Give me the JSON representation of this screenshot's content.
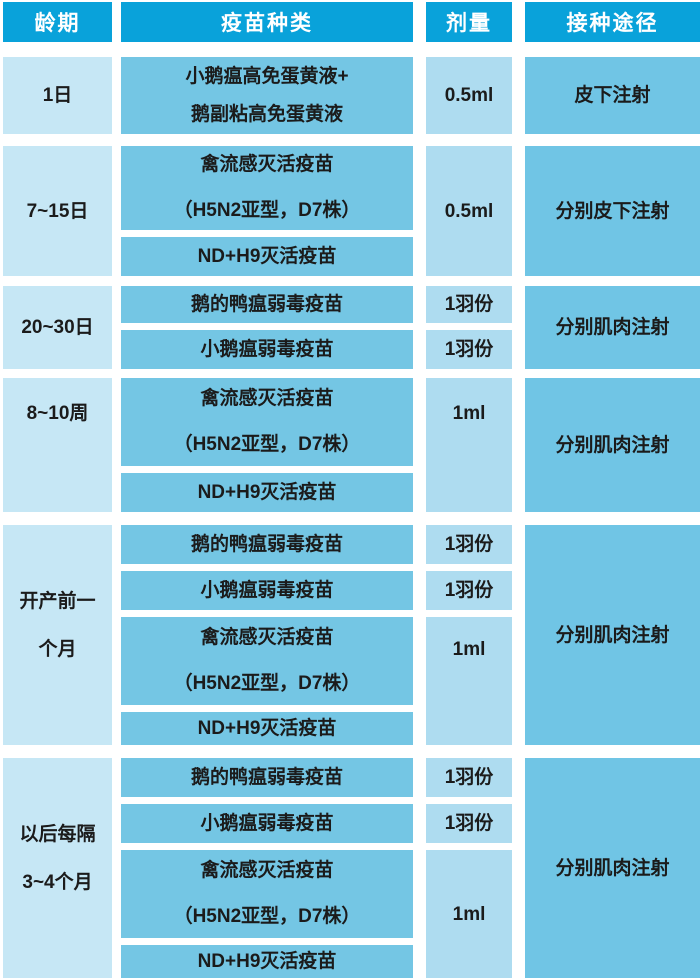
{
  "table": {
    "columns": [
      "龄期",
      "疫苗种类",
      "剂量",
      "接种途径"
    ]
  },
  "colors": {
    "header_bg": "#09a2da",
    "header_text": "#ffffff",
    "age_cell_bg": "#c6e7f5",
    "vaccine_cell_bg": "#74c6e4",
    "dose_cell_bg": "#aedcf0",
    "route_cell_bg": "#70c5e5",
    "body_text": "#1b1b1b",
    "gap": "#ffffff"
  },
  "groups": [
    {
      "age_lines": [
        "1日"
      ],
      "vaccine_cells": [
        {
          "lines": [
            "小鹅瘟高免蛋黄液+",
            "鹅副粘高免蛋黄液"
          ]
        }
      ],
      "doses": [
        "0.5ml"
      ],
      "route": "皮下注射"
    },
    {
      "age_lines": [
        "7~15日"
      ],
      "vaccine_cells": [
        {
          "lines": [
            "禽流感灭活疫苗",
            "（H5N2亚型，D7株）"
          ]
        },
        {
          "lines": [
            "ND+H9灭活疫苗"
          ]
        }
      ],
      "doses": [
        "0.5ml"
      ],
      "route": "分别皮下注射"
    },
    {
      "age_lines": [
        "20~30日"
      ],
      "vaccine_cells": [
        {
          "lines": [
            "鹅的鸭瘟弱毒疫苗"
          ]
        },
        {
          "lines": [
            "小鹅瘟弱毒疫苗"
          ]
        }
      ],
      "doses": [
        "1羽份",
        "1羽份"
      ],
      "route": "分别肌肉注射"
    },
    {
      "age_lines": [
        "8~10周"
      ],
      "vaccine_cells": [
        {
          "lines": [
            "禽流感灭活疫苗",
            "（H5N2亚型，D7株）"
          ]
        },
        {
          "lines": [
            "ND+H9灭活疫苗"
          ]
        }
      ],
      "doses": [
        "1ml"
      ],
      "route": "分别肌肉注射"
    },
    {
      "age_lines": [
        "开产前一",
        "个月"
      ],
      "vaccine_cells": [
        {
          "lines": [
            "鹅的鸭瘟弱毒疫苗"
          ]
        },
        {
          "lines": [
            "小鹅瘟弱毒疫苗"
          ]
        },
        {
          "lines": [
            "禽流感灭活疫苗",
            "（H5N2亚型，D7株）"
          ]
        },
        {
          "lines": [
            "ND+H9灭活疫苗"
          ]
        }
      ],
      "doses": [
        "1羽份",
        "1羽份",
        "1ml"
      ],
      "route": "分别肌肉注射"
    },
    {
      "age_lines": [
        "以后每隔",
        "3~4个月"
      ],
      "vaccine_cells": [
        {
          "lines": [
            "鹅的鸭瘟弱毒疫苗"
          ]
        },
        {
          "lines": [
            "小鹅瘟弱毒疫苗"
          ]
        },
        {
          "lines": [
            "禽流感灭活疫苗",
            "（H5N2亚型，D7株）"
          ]
        },
        {
          "lines": [
            "ND+H9灭活疫苗"
          ]
        }
      ],
      "doses": [
        "1羽份",
        "1羽份",
        "1ml"
      ],
      "route": "分别肌肉注射"
    }
  ]
}
